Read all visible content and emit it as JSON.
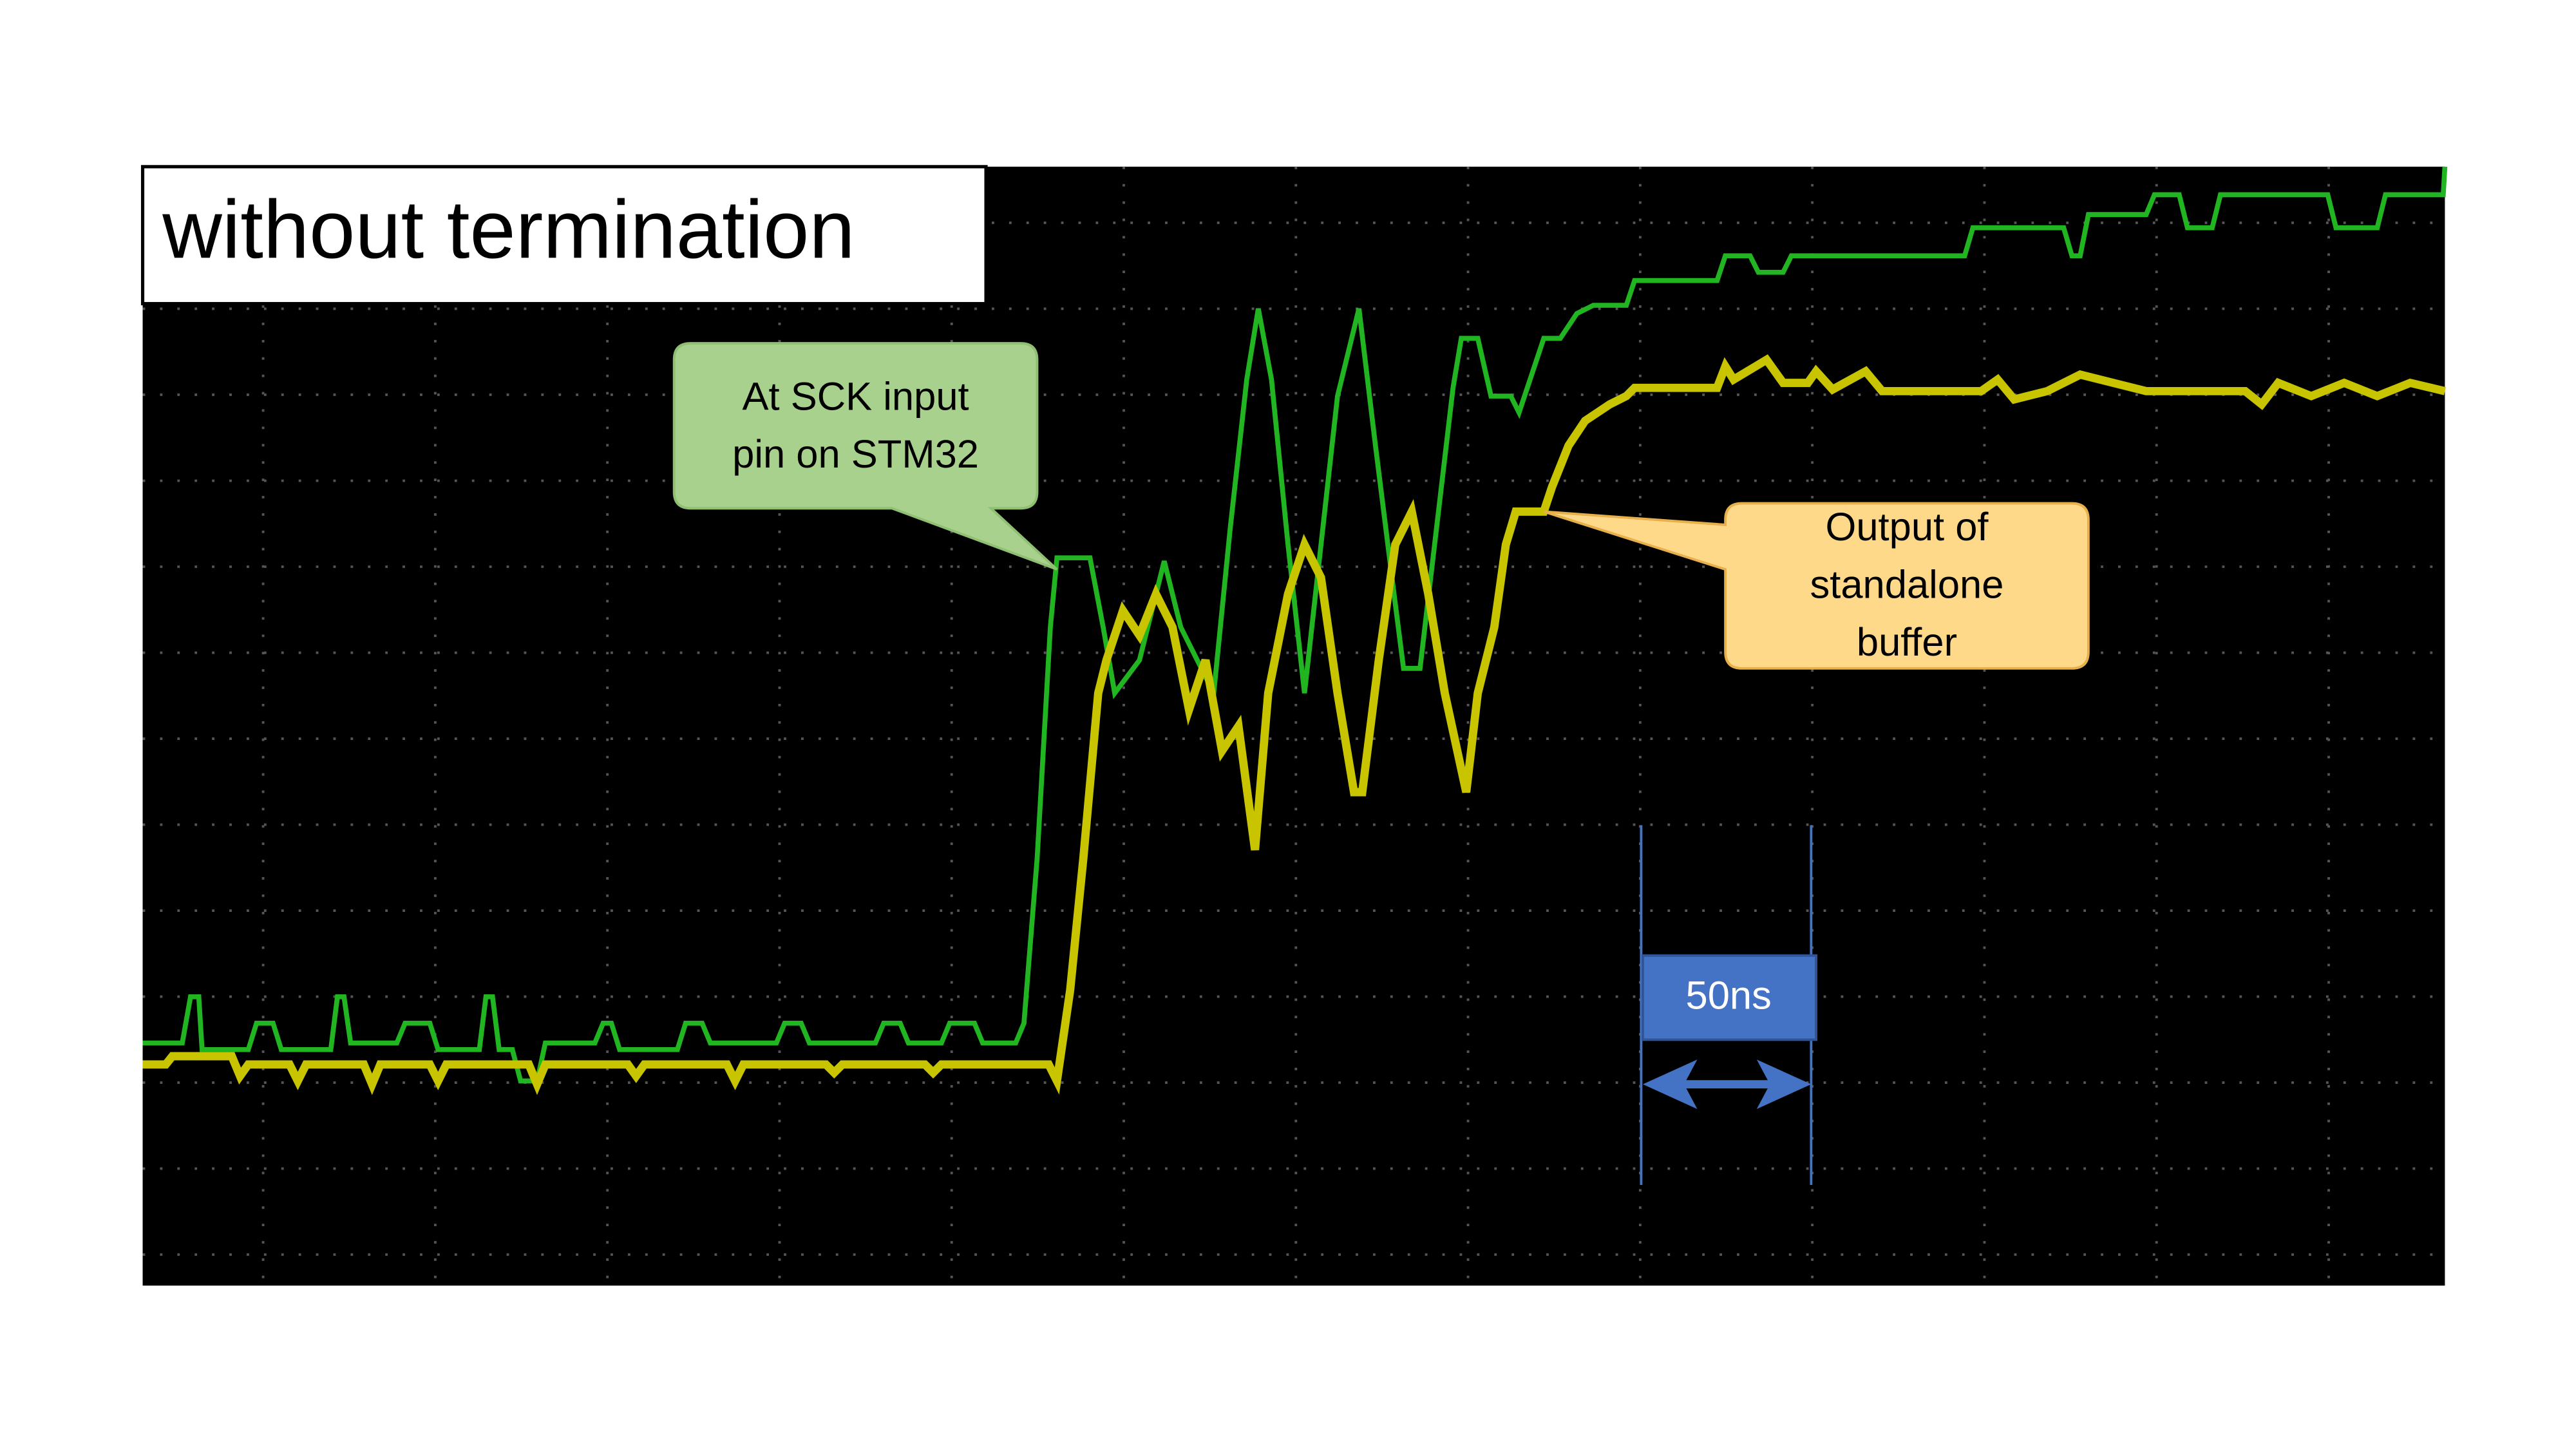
{
  "title": "without termination",
  "callouts": [
    {
      "lines": [
        "At SCK input",
        "pin on STM32"
      ]
    },
    {
      "lines": [
        "Output of",
        "standalone",
        "buffer"
      ]
    }
  ],
  "scale_label": "50ns"
}
